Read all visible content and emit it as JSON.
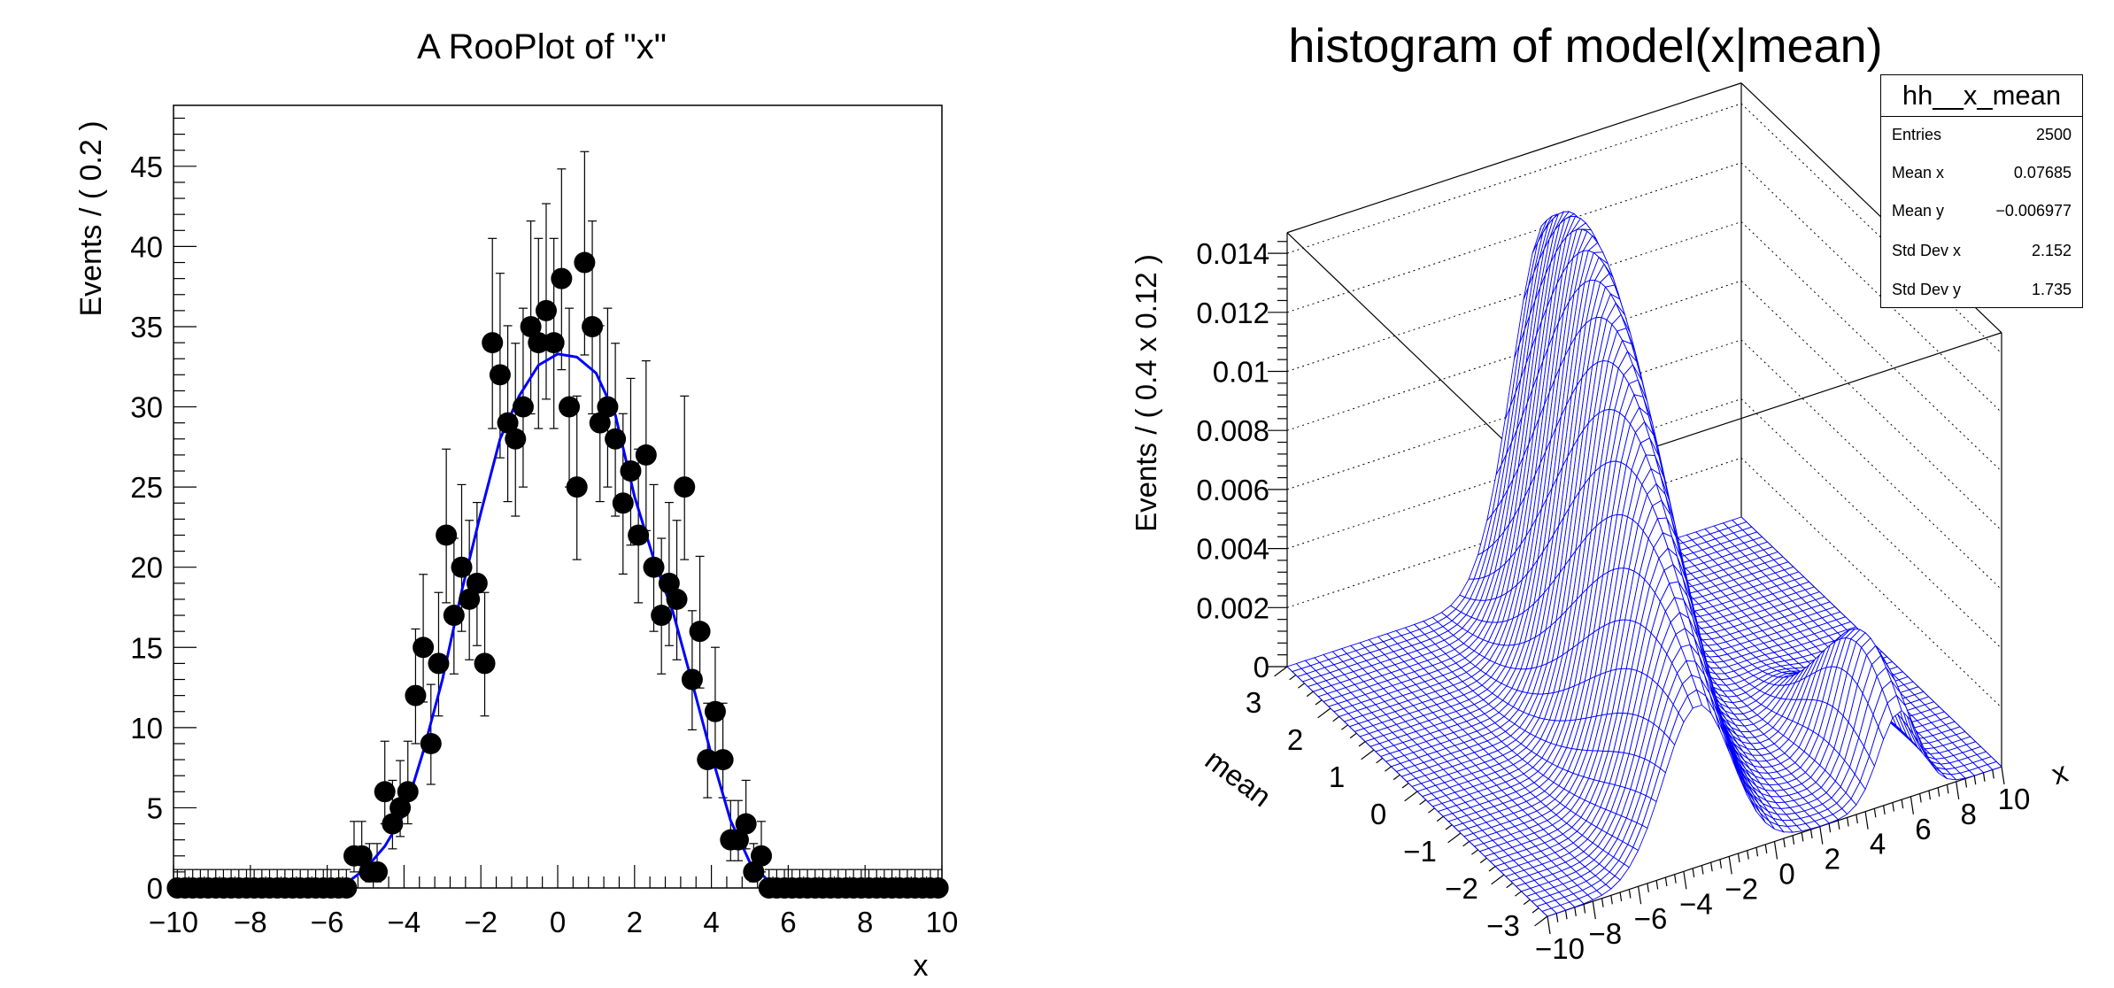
{
  "chart_data": [
    {
      "type": "scatter",
      "title": "A RooPlot of \"x\"",
      "xlabel": "x",
      "ylabel": "Events / ( 0.2 )",
      "xlim": [
        -10,
        10
      ],
      "ylim": [
        0,
        48.8
      ],
      "x_tick_labels": [
        "−10",
        "−8",
        "−6",
        "−4",
        "−2",
        "0",
        "2",
        "4",
        "6",
        "8",
        "10"
      ],
      "x_tick_values": [
        -10,
        -8,
        -6,
        -4,
        -2,
        0,
        2,
        4,
        6,
        8,
        10
      ],
      "y_tick_labels": [
        "0",
        "5",
        "10",
        "15",
        "20",
        "25",
        "30",
        "35",
        "40",
        "45"
      ],
      "y_tick_values": [
        0,
        5,
        10,
        15,
        20,
        25,
        30,
        35,
        40,
        45
      ],
      "bin_width": 0.2,
      "series": [
        {
          "name": "data",
          "style": "black-markers-with-errors",
          "x_start": -9.9,
          "values": [
            0,
            0,
            0,
            0,
            0,
            0,
            0,
            0,
            0,
            0,
            0,
            0,
            0,
            0,
            0,
            0,
            0,
            0,
            0,
            0,
            0,
            0,
            0,
            2,
            2,
            1,
            1,
            6,
            4,
            5,
            6,
            12,
            15,
            9,
            14,
            22,
            17,
            20,
            18,
            19,
            14,
            34,
            32,
            29,
            28,
            30,
            35,
            34,
            36,
            34,
            38,
            30,
            25,
            39,
            35,
            29,
            30,
            28,
            24,
            26,
            22,
            27,
            20,
            17,
            19,
            18,
            25,
            13,
            16,
            8,
            11,
            8,
            3,
            3,
            4,
            1,
            2,
            0,
            0,
            0,
            0,
            0,
            0,
            0,
            0,
            0,
            0,
            0,
            0,
            0,
            0,
            0,
            0,
            0,
            0,
            0,
            0,
            0,
            0,
            0
          ]
        },
        {
          "name": "model",
          "style": "blue-line",
          "x": [
            -10,
            -6,
            -5.5,
            -5,
            -4.5,
            -4,
            -3.5,
            -3,
            -2.5,
            -2,
            -1.5,
            -1,
            -0.5,
            0,
            0.5,
            1,
            1.5,
            2,
            2.5,
            3,
            3.5,
            4,
            4.5,
            5,
            5.5,
            6,
            10
          ],
          "y": [
            0,
            0,
            0.3,
            1.2,
            2.6,
            4.6,
            8.5,
            13,
            18.5,
            23.4,
            28,
            30.7,
            32.6,
            33.3,
            33.1,
            32.1,
            29.5,
            24.4,
            20.5,
            17.2,
            12.8,
            8.3,
            4.2,
            1.6,
            0.4,
            0,
            0
          ]
        }
      ],
      "colors": {
        "data": "#000000",
        "model": "#0000ff"
      }
    },
    {
      "type": "surface",
      "title": "histogram of model(x|mean)",
      "xlabel": "x",
      "ylabel": "mean",
      "zlabel": "Events / ( 0.4 x 0.12 )",
      "xlim": [
        -10,
        10
      ],
      "ylim": [
        -3,
        3
      ],
      "zlim": [
        0,
        0.0147
      ],
      "x_tick_labels": [
        "−10",
        "−8",
        "−6",
        "−4",
        "−2",
        "0",
        "2",
        "4",
        "6",
        "8",
        "10"
      ],
      "x_tick_values": [
        -10,
        -8,
        -6,
        -4,
        -2,
        0,
        2,
        4,
        6,
        8,
        10
      ],
      "y_tick_labels": [
        "−3",
        "−2",
        "−1",
        "0",
        "1",
        "2",
        "3"
      ],
      "y_tick_values": [
        -3,
        -2,
        -1,
        0,
        1,
        2,
        3
      ],
      "z_tick_labels": [
        "0",
        "0.002",
        "0.004",
        "0.006",
        "0.008",
        "0.01",
        "0.012",
        "0.014"
      ],
      "z_tick_values": [
        0,
        0.002,
        0.004,
        0.006,
        0.008,
        0.01,
        0.012,
        0.014
      ],
      "bins": {
        "x": 50,
        "y": 50
      },
      "surface_model": {
        "main_peak": {
          "height": 0.0146,
          "mean_center": 1.2,
          "mean_sigma": 3,
          "x_offset": -1,
          "x_slope": 0.8,
          "x_sigma": 1.5
        },
        "secondary_peak": {
          "height": 0.0045,
          "x_center": 5.5,
          "x_sigma": 0.9,
          "mean_center": -2.2,
          "mean_sigma": 0.9
        }
      },
      "colors": {
        "mesh": "#0000ff",
        "fill": "#ffffff"
      }
    }
  ],
  "stats": {
    "name": "hh__x_mean",
    "rows": [
      {
        "key": "Entries",
        "value": "2500"
      },
      {
        "key": "Mean x",
        "value": "0.07685"
      },
      {
        "key": "Mean y",
        "value": "−0.006977"
      },
      {
        "key": "Std Dev x",
        "value": "2.152"
      },
      {
        "key": "Std Dev y",
        "value": "1.735"
      }
    ]
  }
}
